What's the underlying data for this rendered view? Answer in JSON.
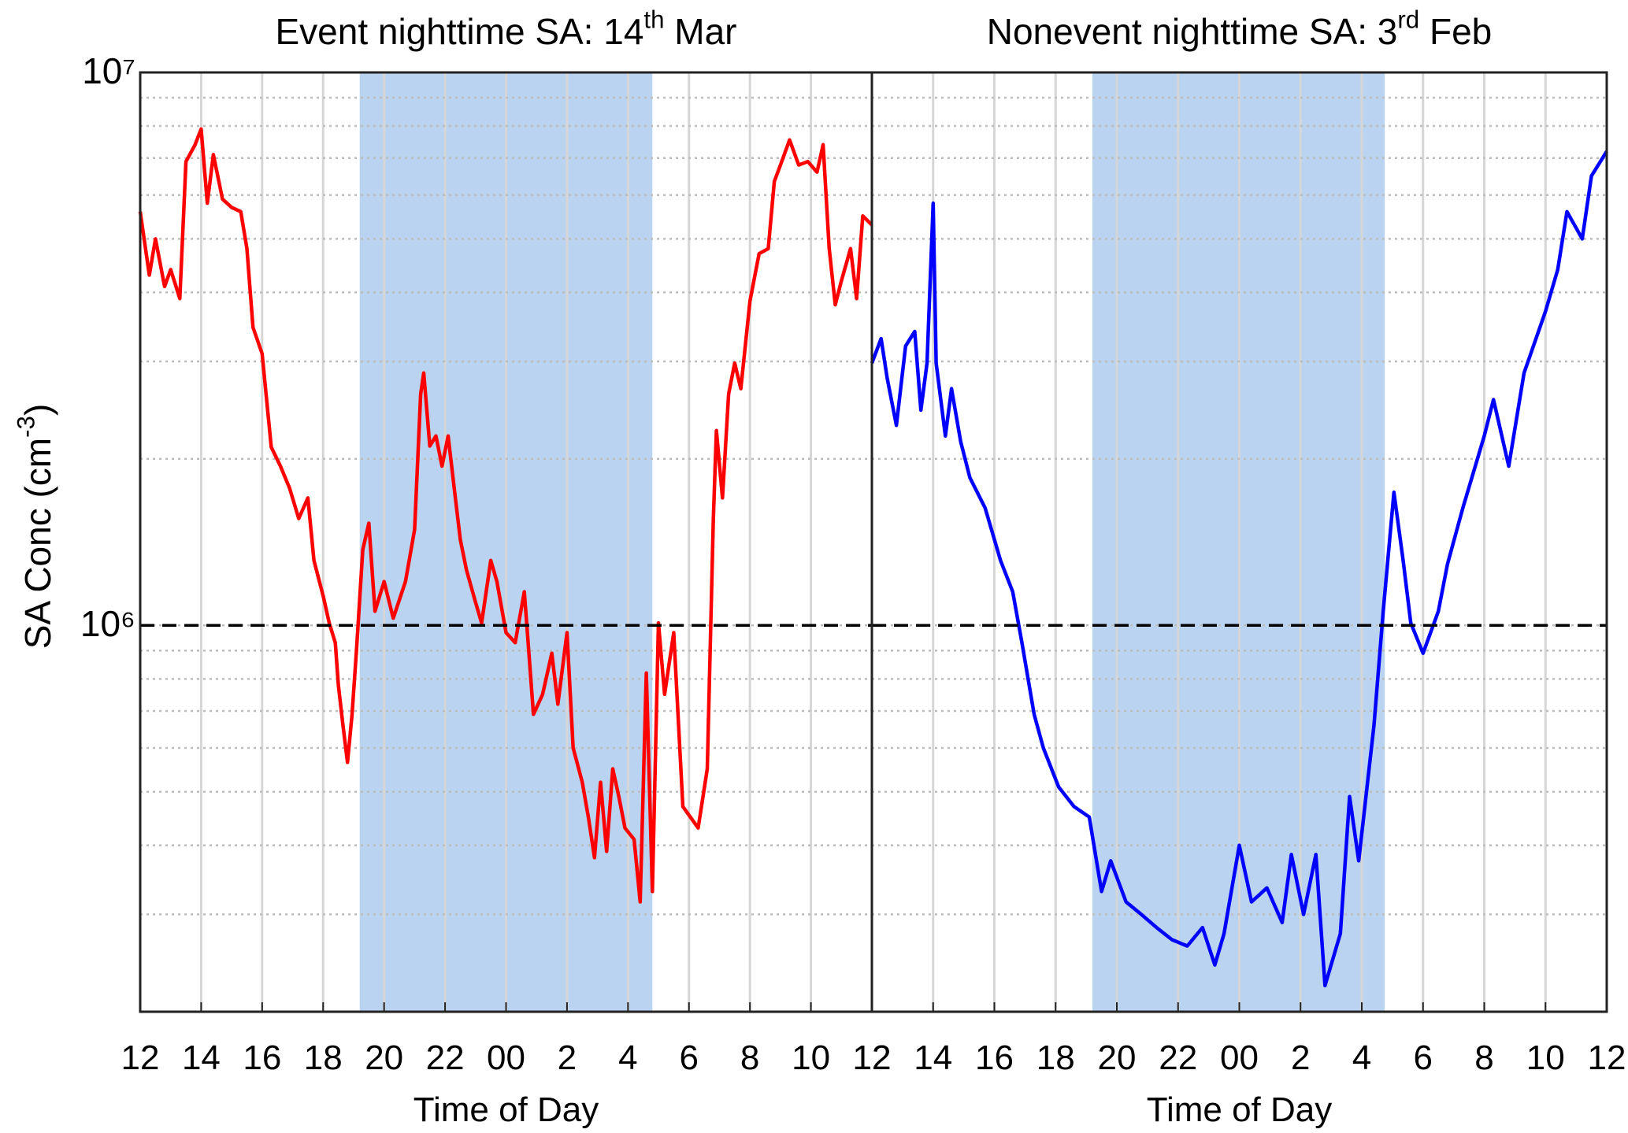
{
  "chart_data": [
    {
      "type": "line",
      "title": {
        "text": "Event nighttime SA: 14",
        "superscript": "th",
        "suffix": " Mar"
      },
      "ylabel": {
        "text": "SA Conc (cm",
        "superscript": "-3",
        "suffix": ")"
      },
      "xlabel": "Time of Day",
      "yscale": "log",
      "grid": true,
      "show_ytick_labels": true,
      "xlim": [
        12,
        36
      ],
      "ylim": [
        200000,
        10000000
      ],
      "xticks": [
        12,
        14,
        16,
        18,
        20,
        22,
        {
          "value": 24,
          "label": "00"
        },
        {
          "value": 26,
          "label": "2"
        },
        {
          "value": 28,
          "label": "4"
        },
        {
          "value": 30,
          "label": "6"
        },
        {
          "value": 32,
          "label": "8"
        },
        {
          "value": 34,
          "label": "10"
        },
        {
          "value": 36,
          "label": "12"
        }
      ],
      "yticks": [
        {
          "value": 1000000,
          "label": "10⁶"
        },
        {
          "value": 10000000,
          "label": "10⁷"
        }
      ],
      "yminorticks": [
        200000,
        300000,
        400000,
        500000,
        600000,
        700000,
        800000,
        900000,
        2000000,
        3000000,
        4000000,
        5000000,
        6000000,
        7000000,
        8000000,
        9000000
      ],
      "shade": [
        19.2,
        28.8
      ],
      "shade_color": "#b9d3f0",
      "hline": 1000000,
      "x": [
        12,
        12.3,
        12.5,
        12.8,
        13,
        13.3,
        13.5,
        13.8,
        14,
        14.2,
        14.4,
        14.7,
        15,
        15.3,
        15.5,
        15.7,
        16,
        16.3,
        16.6,
        16.9,
        17.2,
        17.5,
        17.7,
        18,
        18.2,
        18.4,
        18.5,
        18.65,
        18.8,
        18.95,
        19.1,
        19.3,
        19.5,
        19.7,
        20,
        20.3,
        20.7,
        21,
        21.2,
        21.3,
        21.5,
        21.7,
        21.9,
        22.1,
        22.3,
        22.5,
        22.7,
        23,
        23.2,
        23.5,
        23.7,
        24,
        24.3,
        24.6,
        24.7,
        24.9,
        25.2,
        25.5,
        25.7,
        26,
        26.2,
        26.5,
        26.7,
        26.9,
        27.1,
        27.3,
        27.5,
        27.7,
        27.9,
        28.2,
        28.4,
        28.6,
        28.8,
        29,
        29.2,
        29.5,
        29.8,
        30.3,
        30.6,
        30.8,
        30.9,
        31.1,
        31.3,
        31.5,
        31.7,
        32,
        32.3,
        32.6,
        32.8,
        33,
        33.3,
        33.6,
        33.9,
        34.2,
        34.4,
        34.6,
        34.8,
        35,
        35.3,
        35.5,
        35.7,
        36
      ],
      "series": [
        {
          "color": "#ff0000",
          "values": [
            5600000,
            4300000,
            5000000,
            4100000,
            4400000,
            3900000,
            6900000,
            7400000,
            7900000,
            5800000,
            7100000,
            5900000,
            5700000,
            5600000,
            4800000,
            3460000,
            3100000,
            2100000,
            1940000,
            1770000,
            1560000,
            1700000,
            1310000,
            1130000,
            1010000,
            930000,
            780000,
            660000,
            565000,
            690000,
            910000,
            1370000,
            1530000,
            1060000,
            1200000,
            1030000,
            1200000,
            1490000,
            2620000,
            2860000,
            2110000,
            2200000,
            1940000,
            2200000,
            1770000,
            1430000,
            1260000,
            1100000,
            1010000,
            1310000,
            1200000,
            970000,
            930000,
            1150000,
            970000,
            690000,
            750000,
            890000,
            720000,
            970000,
            600000,
            520000,
            450000,
            380000,
            520000,
            390000,
            550000,
            490000,
            430000,
            410000,
            316000,
            820000,
            330000,
            1010000,
            750000,
            970000,
            470000,
            430000,
            550000,
            1560000,
            2250000,
            1700000,
            2620000,
            2980000,
            2680000,
            3860000,
            4700000,
            4800000,
            6350000,
            6800000,
            7550000,
            6800000,
            6900000,
            6600000,
            7400000,
            4800000,
            3800000,
            4200000,
            4800000,
            3900000,
            5500000,
            5300000
          ]
        }
      ]
    },
    {
      "type": "line",
      "title": {
        "text": "Nonevent nighttime SA: 3",
        "superscript": "rd",
        "suffix": " Feb"
      },
      "xlabel": "Time of Day",
      "yscale": "log",
      "grid": true,
      "show_ytick_labels": false,
      "xlim": [
        12,
        36
      ],
      "ylim": [
        200000,
        10000000
      ],
      "xticks": [
        12,
        14,
        16,
        18,
        20,
        22,
        {
          "value": 24,
          "label": "00"
        },
        {
          "value": 26,
          "label": "2"
        },
        {
          "value": 28,
          "label": "4"
        },
        {
          "value": 30,
          "label": "6"
        },
        {
          "value": 32,
          "label": "8"
        },
        {
          "value": 34,
          "label": "10"
        },
        {
          "value": 36,
          "label": "12"
        }
      ],
      "yticks": [
        {
          "value": 1000000,
          "label": "10⁶"
        },
        {
          "value": 10000000,
          "label": "10⁷"
        }
      ],
      "yminorticks": [
        200000,
        300000,
        400000,
        500000,
        600000,
        700000,
        800000,
        900000,
        2000000,
        3000000,
        4000000,
        5000000,
        6000000,
        7000000,
        8000000,
        9000000
      ],
      "shade": [
        19.2,
        28.75
      ],
      "shade_color": "#b9d3f0",
      "hline": 1000000,
      "x": [
        12,
        12.3,
        12.5,
        12.8,
        13.1,
        13.4,
        13.6,
        13.8,
        14,
        14.1,
        14.4,
        14.6,
        14.9,
        15.2,
        15.7,
        16.2,
        16.6,
        16.9,
        17.3,
        17.6,
        18.1,
        18.6,
        19.1,
        19.5,
        19.8,
        20.3,
        20.8,
        21.3,
        21.8,
        22.3,
        22.8,
        23.2,
        23.5,
        24,
        24.4,
        24.9,
        25.4,
        25.7,
        26.1,
        26.5,
        26.8,
        27.3,
        27.6,
        27.9,
        28.4,
        28.7,
        29.05,
        29.35,
        29.6,
        30,
        30.5,
        30.8,
        31.3,
        32,
        32.3,
        32.8,
        33.3,
        34,
        34.4,
        34.7,
        35.2,
        35.5,
        36
      ],
      "series": [
        {
          "color": "#0000ff",
          "values": [
            2980000,
            3300000,
            2800000,
            2300000,
            3200000,
            3400000,
            2450000,
            2980000,
            5800000,
            2980000,
            2200000,
            2680000,
            2150000,
            1850000,
            1630000,
            1310000,
            1150000,
            930000,
            690000,
            600000,
            510000,
            470000,
            450000,
            330000,
            375000,
            316000,
            300000,
            284000,
            270000,
            263000,
            284000,
            243000,
            277000,
            400000,
            316000,
            335000,
            290000,
            385000,
            300000,
            385000,
            223000,
            277000,
            490000,
            375000,
            660000,
            1060000,
            1740000,
            1310000,
            1010000,
            890000,
            1060000,
            1290000,
            1630000,
            2200000,
            2560000,
            1940000,
            2860000,
            3700000,
            4400000,
            5600000,
            5000000,
            6500000,
            7200000
          ]
        }
      ]
    }
  ]
}
